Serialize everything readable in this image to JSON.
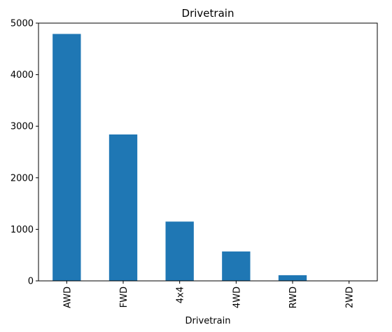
{
  "chart_data": {
    "type": "bar",
    "title": "Drivetrain",
    "xlabel": "Drivetrain",
    "ylabel": "",
    "categories": [
      "AWD",
      "FWD",
      "4x4",
      "4WD",
      "RWD",
      "2WD"
    ],
    "values": [
      4790,
      2840,
      1150,
      570,
      110,
      5
    ],
    "ylim": [
      0,
      5000
    ],
    "yticks": [
      0,
      1000,
      2000,
      3000,
      4000,
      5000
    ],
    "bar_color": "#1f77b4",
    "grid": false,
    "legend": "none"
  }
}
